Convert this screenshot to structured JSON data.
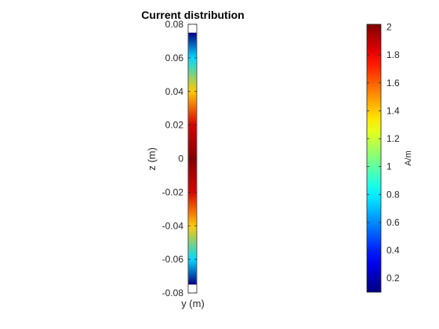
{
  "chart_data": {
    "type": "heatmap",
    "title": "Current distribution",
    "xlabel": "y (m)",
    "ylabel": "z (m)",
    "ylim": [
      -0.08,
      0.08
    ],
    "yticks": [
      "0.08",
      "0.06",
      "0.04",
      "0.02",
      "0",
      "-0.02",
      "-0.04",
      "-0.06",
      "-0.08"
    ],
    "ytick_values": [
      0.08,
      0.06,
      0.04,
      0.02,
      0,
      -0.02,
      -0.04,
      -0.06,
      -0.08
    ],
    "strip_extent_z": [
      -0.075,
      0.075
    ],
    "colormap": "jet",
    "series": [
      {
        "z": [
          -0.075,
          -0.06,
          -0.04,
          -0.02,
          0,
          0.02,
          0.04,
          0.06,
          0.075
        ],
        "values": [
          0.1,
          0.75,
          1.4,
          1.85,
          2.02,
          1.85,
          1.4,
          0.75,
          0.1
        ]
      }
    ],
    "colorbar": {
      "label": "A/m",
      "range": [
        0.1,
        2.02
      ],
      "ticks": [
        "2",
        "1.8",
        "1.6",
        "1.4",
        "1.2",
        "1",
        "0.8",
        "0.6",
        "0.4",
        "0.2"
      ],
      "tick_values": [
        2,
        1.8,
        1.6,
        1.4,
        1.2,
        1,
        0.8,
        0.6,
        0.4,
        0.2
      ]
    },
    "grid": false
  }
}
